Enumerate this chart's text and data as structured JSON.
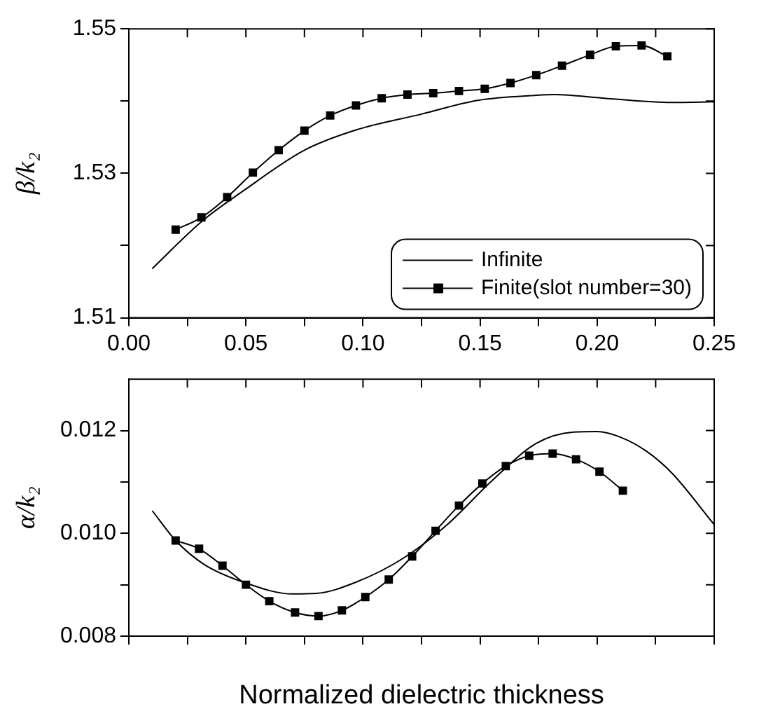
{
  "chart_data": [
    {
      "type": "line",
      "ylabel": "β/k₂",
      "legend": "bottom right",
      "grid": false,
      "xlim": [
        0,
        0.25
      ],
      "xticks": [
        {
          "value": 0,
          "label": "0.00"
        },
        {
          "value": 0.025,
          "label": null
        },
        {
          "value": 0.05,
          "label": "0.05"
        },
        {
          "value": 0.075,
          "label": null
        },
        {
          "value": 0.1,
          "label": "0.10"
        },
        {
          "value": 0.125,
          "label": null
        },
        {
          "value": 0.15,
          "label": "0.15"
        },
        {
          "value": 0.175,
          "label": null
        },
        {
          "value": 0.2,
          "label": "0.20"
        },
        {
          "value": 0.225,
          "label": null
        },
        {
          "value": 0.25,
          "label": "0.25"
        }
      ],
      "ylim": [
        1.51,
        1.55
      ],
      "yticks": [
        1.51,
        {
          "value": 1.52,
          "label": null
        },
        1.53,
        {
          "value": 1.54,
          "label": null
        },
        1.55
      ],
      "series": [
        {
          "name": "Infinite",
          "color": "#000000",
          "marker": "none",
          "x": [
            0.01,
            0.031,
            0.049,
            0.075,
            0.097,
            0.125,
            0.149,
            0.174,
            0.182,
            0.203,
            0.232,
            0.25
          ],
          "values": [
            1.5168,
            1.5233,
            1.5276,
            1.5332,
            1.536,
            1.5382,
            1.5401,
            1.5408,
            1.5409,
            1.5404,
            1.5398,
            1.5399
          ]
        },
        {
          "name": "Finite(slot number=30)",
          "color": "#000000",
          "marker": "square",
          "x": [
            0.02,
            0.031,
            0.042,
            0.053,
            0.064,
            0.075,
            0.086,
            0.097,
            0.108,
            0.119,
            0.13,
            0.141,
            0.152,
            0.163,
            0.174,
            0.185,
            0.197,
            0.208,
            0.219,
            0.23
          ],
          "values": [
            1.5222,
            1.5239,
            1.5267,
            1.5301,
            1.5332,
            1.5359,
            1.538,
            1.5394,
            1.5404,
            1.5409,
            1.5411,
            1.5414,
            1.5417,
            1.5425,
            1.5436,
            1.5449,
            1.5464,
            1.5476,
            1.5477,
            1.5462
          ]
        }
      ]
    },
    {
      "type": "line",
      "ylabel": "α/k₂",
      "xlabel": "Normalized dielectric thickness",
      "grid": false,
      "tick_labels": "y",
      "xlim": [
        0,
        0.25
      ],
      "xticks": [
        {
          "value": 0,
          "label": null
        },
        {
          "value": 0.025,
          "label": null
        },
        {
          "value": 0.05,
          "label": null
        },
        {
          "value": 0.075,
          "label": null
        },
        {
          "value": 0.1,
          "label": null
        },
        {
          "value": 0.125,
          "label": null
        },
        {
          "value": 0.15,
          "label": null
        },
        {
          "value": 0.175,
          "label": null
        },
        {
          "value": 0.2,
          "label": null
        },
        {
          "value": 0.225,
          "label": null
        },
        {
          "value": 0.25,
          "label": null
        }
      ],
      "ylim": [
        0.008,
        0.013
      ],
      "yticks": [
        0.008,
        {
          "value": 0.009,
          "label": null
        },
        {
          "value": 0.01,
          "label": "0.010"
        },
        {
          "value": 0.011,
          "label": null
        },
        0.012
      ],
      "series": [
        {
          "color": "#000000",
          "marker": "none",
          "x": [
            0.01,
            0.02,
            0.032,
            0.049,
            0.07,
            0.08,
            0.097,
            0.117,
            0.136,
            0.155,
            0.174,
            0.19,
            0.2,
            0.21,
            0.221,
            0.232,
            0.25
          ],
          "values": [
            0.01044,
            0.00986,
            0.0094,
            0.00905,
            0.00882,
            0.00883,
            0.00905,
            0.00951,
            0.01017,
            0.01102,
            0.01175,
            0.01197,
            0.01198,
            0.01187,
            0.0116,
            0.01117,
            0.01017
          ]
        },
        {
          "color": "#000000",
          "marker": "square",
          "x": [
            0.02,
            0.03,
            0.04,
            0.05,
            0.06,
            0.071,
            0.081,
            0.091,
            0.101,
            0.111,
            0.121,
            0.131,
            0.141,
            0.151,
            0.161,
            0.171,
            0.181,
            0.191,
            0.201,
            0.211
          ],
          "values": [
            0.00986,
            0.0097,
            0.00937,
            0.009,
            0.00868,
            0.00846,
            0.00839,
            0.0085,
            0.00876,
            0.0091,
            0.00955,
            0.01005,
            0.01054,
            0.01097,
            0.01131,
            0.01151,
            0.01155,
            0.01144,
            0.0112,
            0.01083
          ]
        }
      ]
    }
  ]
}
